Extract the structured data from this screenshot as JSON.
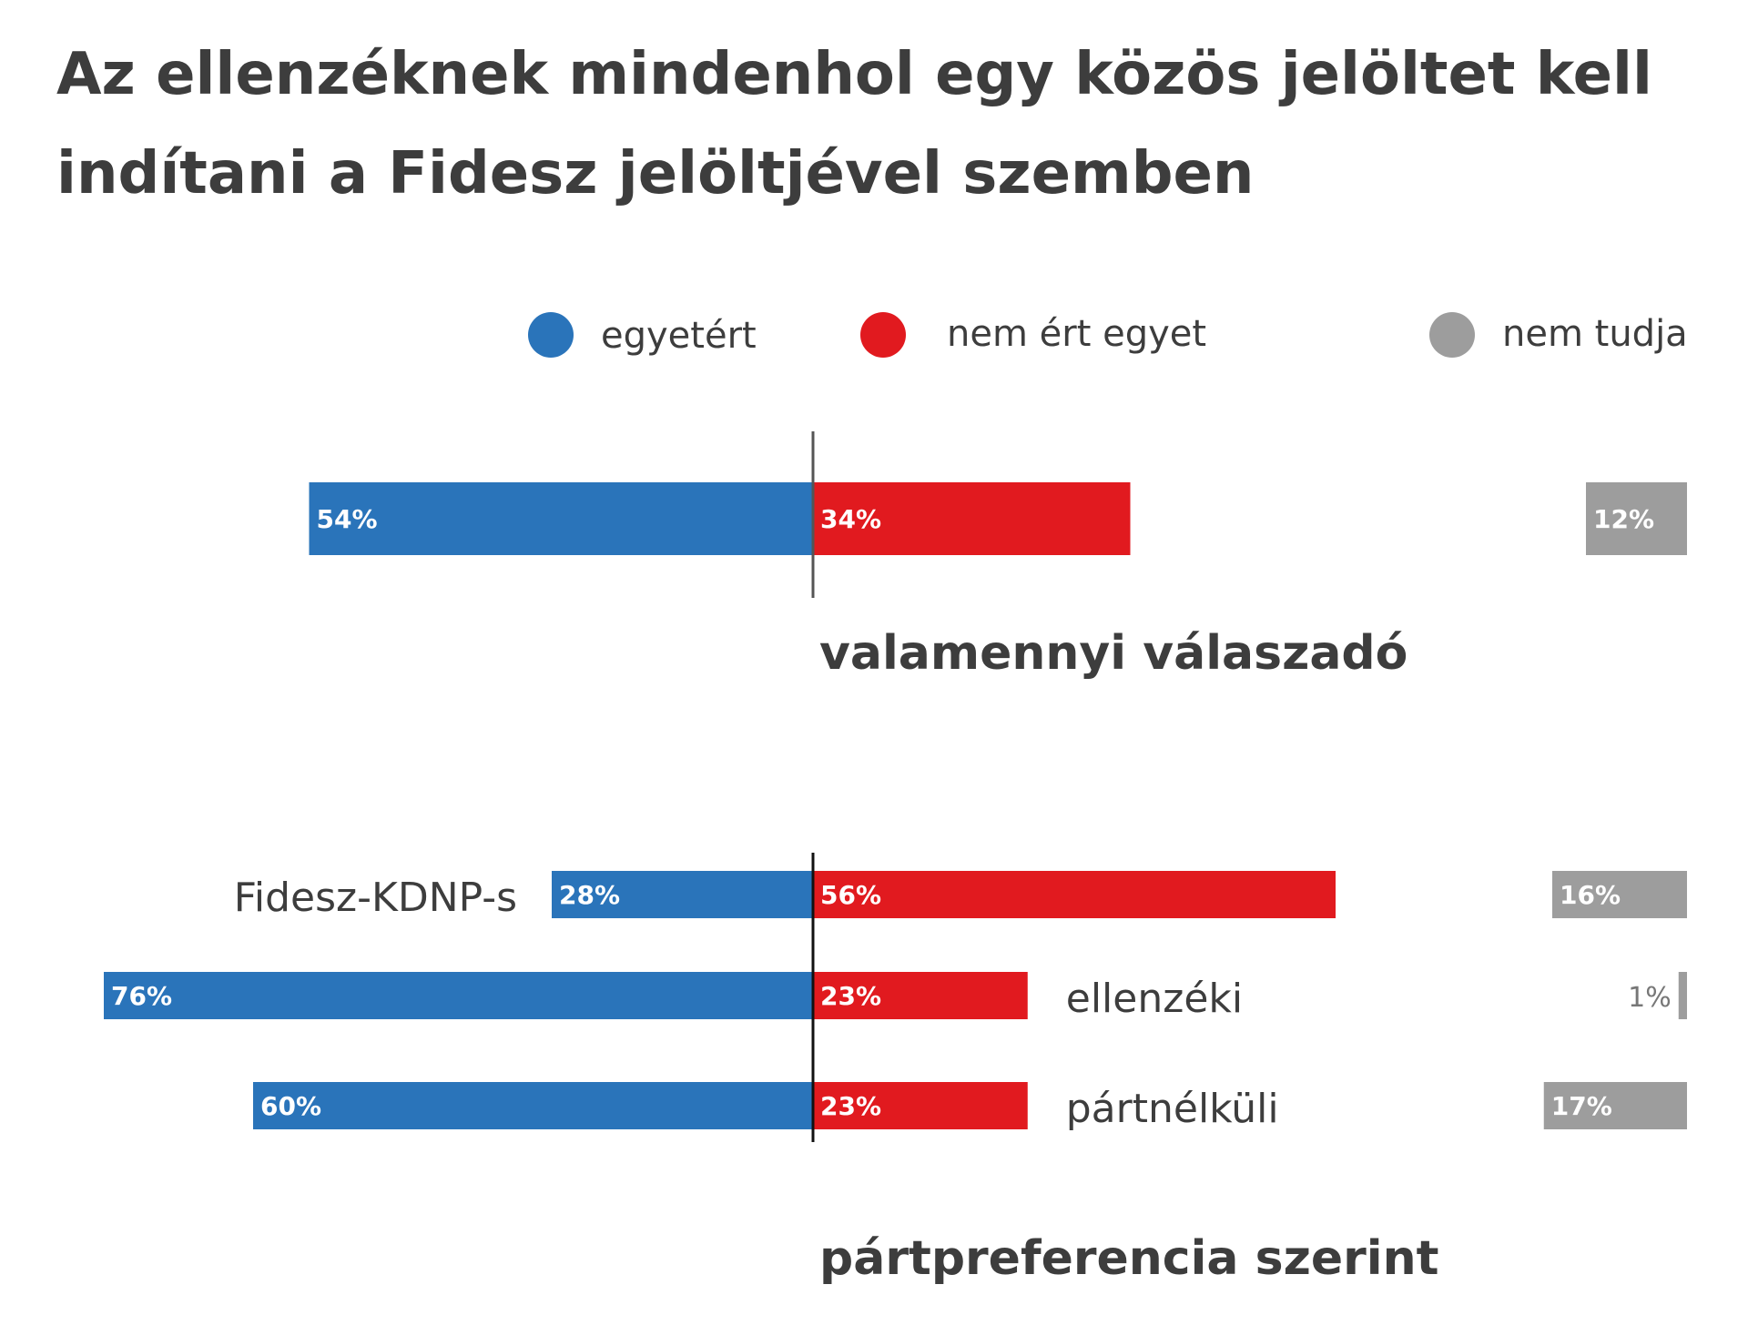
{
  "title_lines": [
    "Az ellenzéknek mindenhol egy közös jelöltet kell",
    "indítani a Fidesz jelöltjével szemben"
  ],
  "colors": {
    "agree": "#2a74ba",
    "disagree": "#e11a1f",
    "dontknow": "#9d9d9d",
    "text": "#3d3d3d"
  },
  "legend": [
    {
      "key": "agree",
      "label": "egyetért",
      "icon": "legend-dot-blue"
    },
    {
      "key": "disagree",
      "label": "nem ért egyet",
      "icon": "legend-dot-red"
    },
    {
      "key": "dontknow",
      "label": "nem tudja",
      "icon": "legend-dot-gray"
    }
  ],
  "chart_data": [
    {
      "type": "bar",
      "title": "valamennyi válaszadó",
      "orientation": "horizontal-diverging",
      "categories": [
        ""
      ],
      "series": [
        {
          "name": "egyetért",
          "values": [
            54
          ],
          "labels": [
            "54%"
          ]
        },
        {
          "name": "nem ért egyet",
          "values": [
            34
          ],
          "labels": [
            "34%"
          ]
        },
        {
          "name": "nem tudja",
          "values": [
            12
          ],
          "labels": [
            "12%"
          ]
        }
      ]
    },
    {
      "type": "bar",
      "title": "pártpreferencia szerint",
      "orientation": "horizontal-diverging",
      "categories": [
        "Fidesz-KDNP-s",
        "ellenzéki",
        "pártnélküli"
      ],
      "series": [
        {
          "name": "egyetért",
          "values": [
            28,
            76,
            60
          ],
          "labels": [
            "28%",
            "76%",
            "60%"
          ]
        },
        {
          "name": "nem ért egyet",
          "values": [
            56,
            23,
            23
          ],
          "labels": [
            "56%",
            "23%",
            "23%"
          ]
        },
        {
          "name": "nem tudja",
          "values": [
            16,
            1,
            17
          ],
          "labels": [
            "16%",
            "1%",
            "17%"
          ]
        }
      ]
    }
  ]
}
